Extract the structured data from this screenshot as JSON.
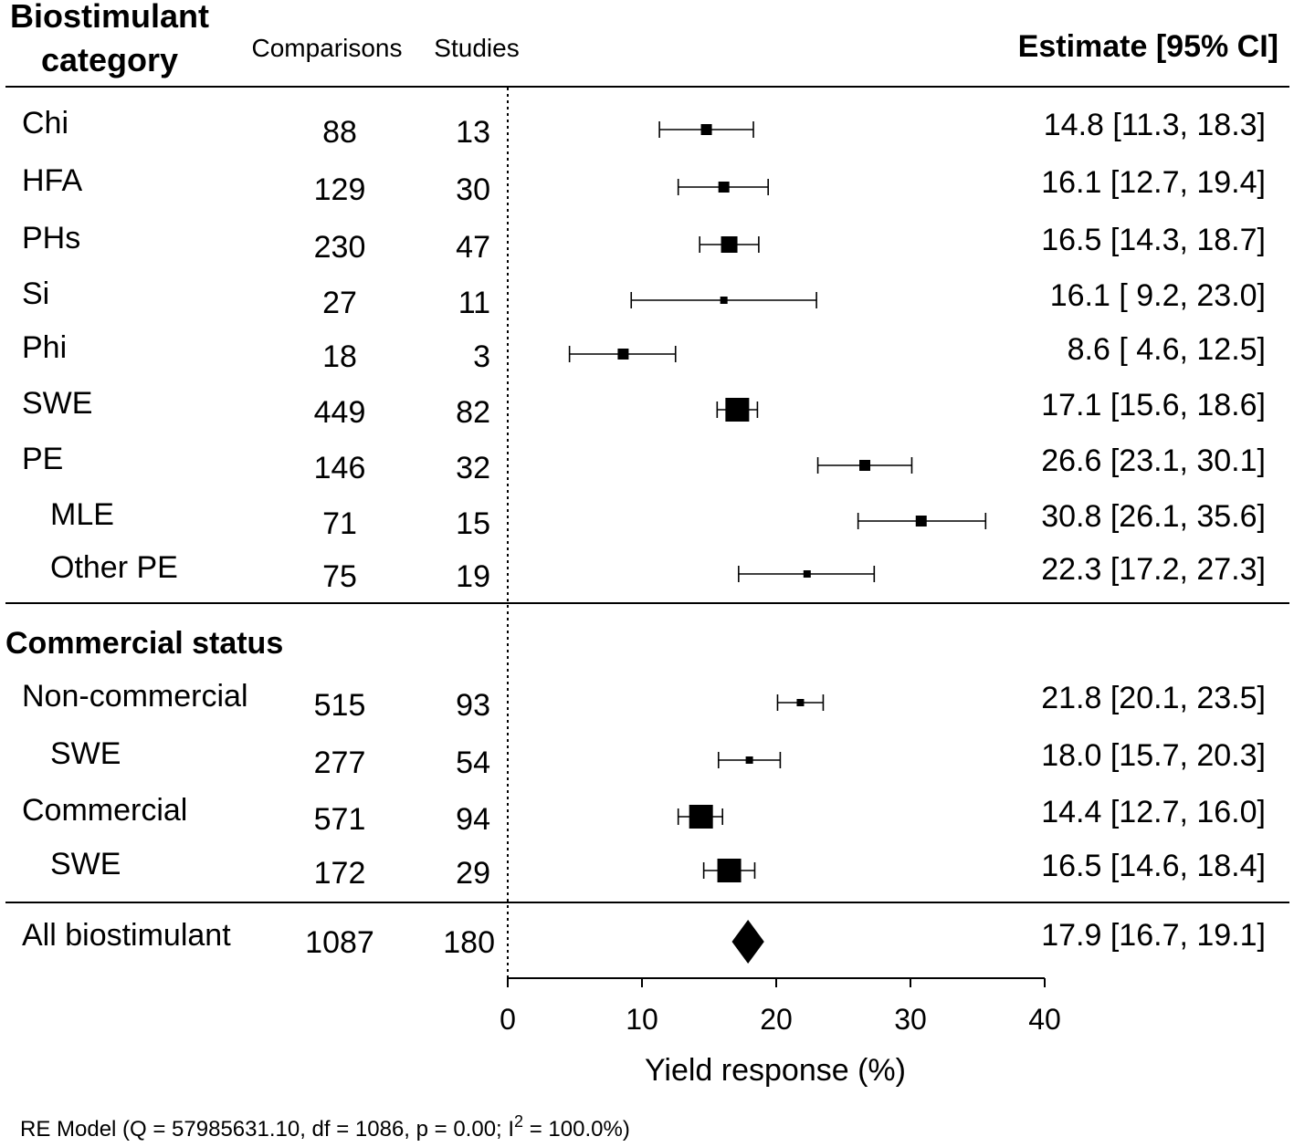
{
  "chart_data": {
    "type": "forest",
    "header": {
      "category_title_line1": "Biostimulant",
      "category_title_line2": "category",
      "comparisons": "Comparisons",
      "studies": "Studies",
      "estimate": "Estimate [95% CI]"
    },
    "xlabel": "Yield response (%)",
    "xlim": [
      0,
      40
    ],
    "ticks": [
      0,
      10,
      20,
      30,
      40
    ],
    "tick_labels": [
      "0",
      "10",
      "20",
      "30",
      "40"
    ],
    "reference_line": 0,
    "section2_title": "Commercial status",
    "rows": [
      {
        "label": "Chi",
        "indent": 0,
        "comparisons": "88",
        "studies": "13",
        "estimate": 14.8,
        "lower": 11.3,
        "upper": 18.3,
        "weight": 2,
        "ci_text": "14.8 [11.3, 18.3]"
      },
      {
        "label": "HFA",
        "indent": 0,
        "comparisons": "129",
        "studies": "30",
        "estimate": 16.1,
        "lower": 12.7,
        "upper": 19.4,
        "weight": 2,
        "ci_text": "16.1 [12.7, 19.4]"
      },
      {
        "label": "PHs",
        "indent": 0,
        "comparisons": "230",
        "studies": "47",
        "estimate": 16.5,
        "lower": 14.3,
        "upper": 18.7,
        "weight": 3,
        "ci_text": "16.5 [14.3, 18.7]"
      },
      {
        "label": "Si",
        "indent": 0,
        "comparisons": "27",
        "studies": "11",
        "estimate": 16.1,
        "lower": 9.2,
        "upper": 23.0,
        "weight": 1,
        "ci_text": "16.1 [ 9.2, 23.0]"
      },
      {
        "label": "Phi",
        "indent": 0,
        "comparisons": "18",
        "studies": "3",
        "estimate": 8.6,
        "lower": 4.6,
        "upper": 12.5,
        "weight": 2,
        "ci_text": "8.6 [ 4.6, 12.5]"
      },
      {
        "label": "SWE",
        "indent": 0,
        "comparisons": "449",
        "studies": "82",
        "estimate": 17.1,
        "lower": 15.6,
        "upper": 18.6,
        "weight": 4,
        "ci_text": "17.1 [15.6, 18.6]"
      },
      {
        "label": "PE",
        "indent": 0,
        "comparisons": "146",
        "studies": "32",
        "estimate": 26.6,
        "lower": 23.1,
        "upper": 30.1,
        "weight": 2,
        "ci_text": "26.6 [23.1, 30.1]"
      },
      {
        "label": "MLE",
        "indent": 1,
        "comparisons": "71",
        "studies": "15",
        "estimate": 30.8,
        "lower": 26.1,
        "upper": 35.6,
        "weight": 2,
        "ci_text": "30.8 [26.1, 35.6]"
      },
      {
        "label": "Other PE",
        "indent": 1,
        "comparisons": "75",
        "studies": "19",
        "estimate": 22.3,
        "lower": 17.2,
        "upper": 27.3,
        "weight": 1,
        "ci_text": "22.3 [17.2, 27.3]"
      },
      {
        "label": "Non-commercial",
        "indent": 0,
        "comparisons": "515",
        "studies": "93",
        "estimate": 21.8,
        "lower": 20.1,
        "upper": 23.5,
        "weight": 1,
        "ci_text": "21.8 [20.1, 23.5]"
      },
      {
        "label": "SWE",
        "indent": 1,
        "comparisons": "277",
        "studies": "54",
        "estimate": 18.0,
        "lower": 15.7,
        "upper": 20.3,
        "weight": 1,
        "ci_text": "18.0 [15.7, 20.3]"
      },
      {
        "label": "Commercial",
        "indent": 0,
        "comparisons": "571",
        "studies": "94",
        "estimate": 14.4,
        "lower": 12.7,
        "upper": 16.0,
        "weight": 4,
        "ci_text": "14.4 [12.7, 16.0]"
      },
      {
        "label": "SWE",
        "indent": 1,
        "comparisons": "172",
        "studies": "29",
        "estimate": 16.5,
        "lower": 14.6,
        "upper": 18.4,
        "weight": 4,
        "ci_text": "16.5 [14.6, 18.4]"
      }
    ],
    "summary": {
      "label": "All biostimulant",
      "comparisons": "1087",
      "studies": "180",
      "estimate": 17.9,
      "lower": 16.7,
      "upper": 19.1,
      "ci_text": "17.9 [16.7, 19.1]"
    },
    "footnote": {
      "prefix": "RE Model (Q = 57985631.10, df = 1086, p = 0.00; I",
      "superscript": "2",
      "suffix": " = 100.0%)"
    }
  }
}
